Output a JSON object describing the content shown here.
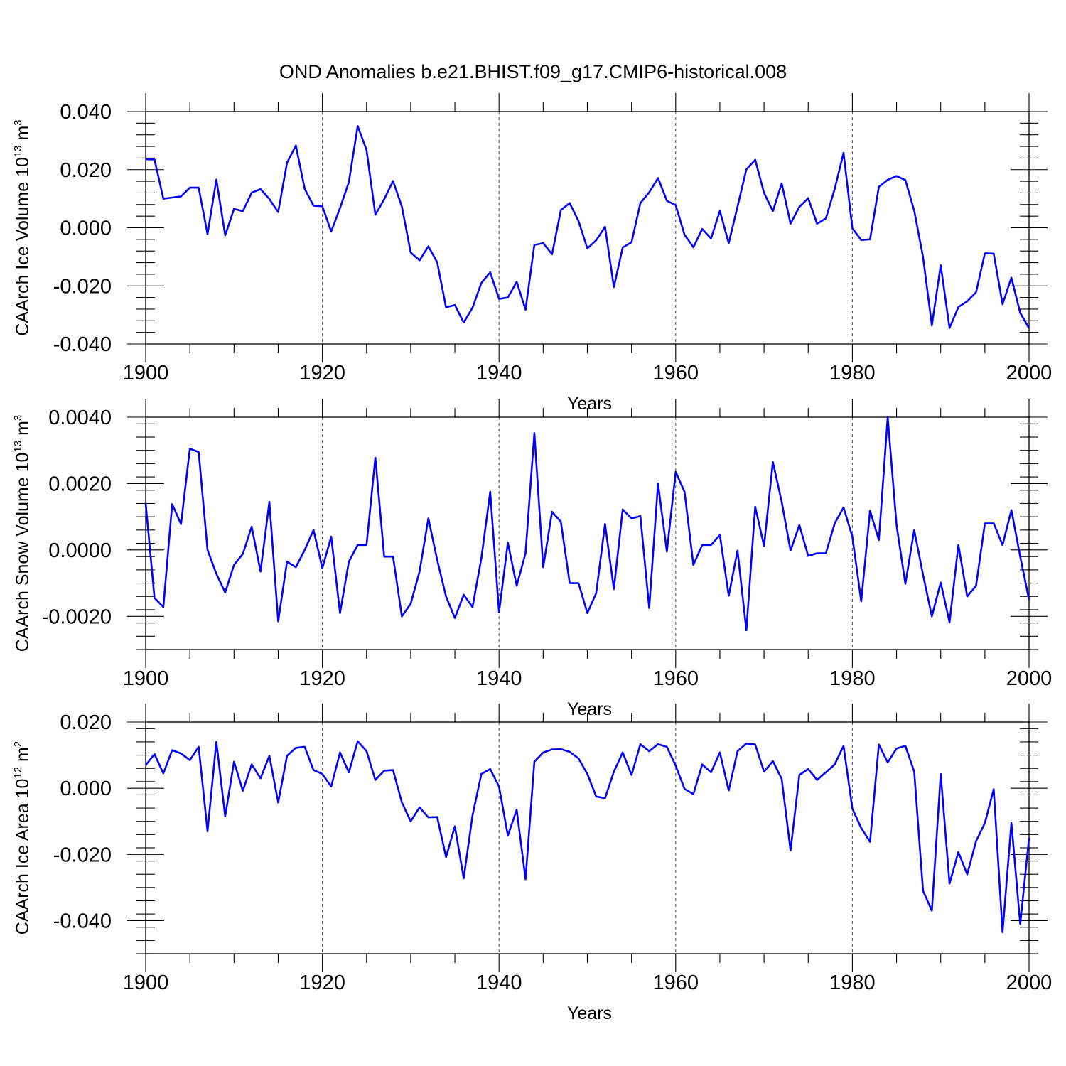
{
  "figure_title": "OND Anomalies b.e21.BHIST.f09_g17.CMIP6-historical.008",
  "colors": {
    "line": "#0000ff",
    "axes": "#000000",
    "background": "#ffffff"
  },
  "chart_data": [
    {
      "type": "line",
      "ylabel_main": "CAArch Ice Volume 10",
      "ylabel_exp": "13",
      "ylabel_unit": " m",
      "ylabel_unit_exp": "3",
      "xlabel": "Years",
      "xlim": [
        1900,
        2000
      ],
      "ylim": [
        -0.04,
        0.04
      ],
      "yticks": [
        -0.04,
        -0.02,
        0.0,
        0.02,
        0.04
      ],
      "ytick_labels": [
        "-0.040",
        "-0.020",
        "0.000",
        "0.020",
        "0.040"
      ],
      "xticks": [
        1900,
        1920,
        1940,
        1960,
        1980,
        2000
      ],
      "xtick_labels": [
        "1900",
        "1920",
        "1940",
        "1960",
        "1980",
        "2000"
      ],
      "reference_lines_x": [
        1920,
        1940,
        1960,
        1980
      ],
      "x": [
        1900,
        1901,
        1902,
        1903,
        1904,
        1905,
        1906,
        1907,
        1908,
        1909,
        1910,
        1911,
        1912,
        1913,
        1914,
        1915,
        1916,
        1917,
        1918,
        1919,
        1920,
        1921,
        1922,
        1923,
        1924,
        1925,
        1926,
        1927,
        1928,
        1929,
        1930,
        1931,
        1932,
        1933,
        1934,
        1935,
        1936,
        1937,
        1938,
        1939,
        1940,
        1941,
        1942,
        1943,
        1944,
        1945,
        1946,
        1947,
        1948,
        1949,
        1950,
        1951,
        1952,
        1953,
        1954,
        1955,
        1956,
        1957,
        1958,
        1959,
        1960,
        1961,
        1962,
        1963,
        1964,
        1965,
        1966,
        1967,
        1968,
        1969,
        1970,
        1971,
        1972,
        1973,
        1974,
        1975,
        1976,
        1977,
        1978,
        1979,
        1980,
        1981,
        1982,
        1983,
        1984,
        1985,
        1986,
        1987,
        1988,
        1989,
        1990,
        1991,
        1992,
        1993,
        1994,
        1995,
        1996,
        1997,
        1998,
        1999,
        2000
      ],
      "y": [
        0.0236,
        0.0235,
        0.01,
        0.0104,
        0.0108,
        0.0138,
        0.0138,
        -0.0022,
        0.0166,
        -0.0026,
        0.0065,
        0.0057,
        0.0121,
        0.0133,
        0.0099,
        0.0054,
        0.0224,
        0.0283,
        0.0134,
        0.0076,
        0.0074,
        -0.0013,
        0.0068,
        0.0157,
        0.035,
        0.0268,
        0.0045,
        0.0098,
        0.0161,
        0.0073,
        -0.0085,
        -0.0112,
        -0.0064,
        -0.0119,
        -0.0274,
        -0.0266,
        -0.0326,
        -0.0275,
        -0.019,
        -0.0153,
        -0.0245,
        -0.024,
        -0.0186,
        -0.0282,
        -0.0059,
        -0.0053,
        -0.0091,
        0.0061,
        0.0085,
        0.0023,
        -0.0071,
        -0.0043,
        0.0003,
        -0.0204,
        -0.0068,
        -0.005,
        0.0085,
        0.0122,
        0.0171,
        0.0093,
        0.0078,
        -0.0024,
        -0.0067,
        -0.0004,
        -0.0037,
        0.0058,
        -0.0053,
        0.0073,
        0.0201,
        0.0234,
        0.012,
        0.0057,
        0.0153,
        0.0014,
        0.0072,
        0.0102,
        0.0014,
        0.0032,
        0.0134,
        0.0258,
        -0.0002,
        -0.0042,
        -0.004,
        0.0141,
        0.0165,
        0.0178,
        0.0164,
        0.0059,
        -0.0101,
        -0.0336,
        -0.0129,
        -0.0345,
        -0.0273,
        -0.0253,
        -0.0222,
        -0.0088,
        -0.0089,
        -0.0263,
        -0.0172,
        -0.0293,
        -0.0346
      ]
    },
    {
      "type": "line",
      "ylabel_main": "CAArch Snow Volume 10",
      "ylabel_exp": "13",
      "ylabel_unit": " m",
      "ylabel_unit_exp": "3",
      "xlabel": "Years",
      "xlim": [
        1900,
        2000
      ],
      "ylim": [
        -0.003,
        0.004
      ],
      "yticks": [
        -0.002,
        0.0,
        0.002,
        0.004
      ],
      "ytick_labels": [
        "-0.0020",
        "0.0000",
        "0.0020",
        "0.0040"
      ],
      "xticks": [
        1900,
        1920,
        1940,
        1960,
        1980,
        2000
      ],
      "xtick_labels": [
        "1900",
        "1920",
        "1940",
        "1960",
        "1980",
        "2000"
      ],
      "reference_lines_x": [
        1920,
        1940,
        1960,
        1980
      ],
      "x": [
        1900,
        1901,
        1902,
        1903,
        1904,
        1905,
        1906,
        1907,
        1908,
        1909,
        1910,
        1911,
        1912,
        1913,
        1914,
        1915,
        1916,
        1917,
        1918,
        1919,
        1920,
        1921,
        1922,
        1923,
        1924,
        1925,
        1926,
        1927,
        1928,
        1929,
        1930,
        1931,
        1932,
        1933,
        1934,
        1935,
        1936,
        1937,
        1938,
        1939,
        1940,
        1941,
        1942,
        1943,
        1944,
        1945,
        1946,
        1947,
        1948,
        1949,
        1950,
        1951,
        1952,
        1953,
        1954,
        1955,
        1956,
        1957,
        1958,
        1959,
        1960,
        1961,
        1962,
        1963,
        1964,
        1965,
        1966,
        1967,
        1968,
        1969,
        1970,
        1971,
        1972,
        1973,
        1974,
        1975,
        1976,
        1977,
        1978,
        1979,
        1980,
        1981,
        1982,
        1983,
        1984,
        1985,
        1986,
        1987,
        1988,
        1989,
        1990,
        1991,
        1992,
        1993,
        1994,
        1995,
        1996,
        1997,
        1998,
        1999,
        2000
      ],
      "y": [
        0.0014,
        -0.00145,
        -0.00172,
        0.00138,
        0.00078,
        0.00305,
        0.00295,
        0.0,
        -0.00072,
        -0.00128,
        -0.00045,
        -0.00012,
        0.0007,
        -0.00065,
        0.00145,
        -0.00215,
        -0.00035,
        -0.00052,
        0.0,
        0.0006,
        -0.00055,
        0.0004,
        -0.0019,
        -0.00035,
        0.00015,
        0.00015,
        0.00278,
        -0.0002,
        -0.0002,
        -0.002,
        -0.00162,
        -0.00065,
        0.00095,
        -0.0003,
        -0.0014,
        -0.00205,
        -0.00135,
        -0.00172,
        -0.00025,
        0.00175,
        -0.00188,
        0.00022,
        -0.00108,
        -0.0001,
        0.00352,
        -0.00052,
        0.00115,
        0.00085,
        -0.001,
        -0.001,
        -0.0019,
        -0.0013,
        0.00078,
        -0.00118,
        0.00122,
        0.00095,
        0.00102,
        -0.00175,
        0.002,
        -5e-05,
        0.00235,
        0.00175,
        -0.00045,
        0.00015,
        0.00015,
        0.00045,
        -0.00138,
        -2e-05,
        -0.00242,
        0.0013,
        0.00012,
        0.00265,
        0.00145,
        -2e-05,
        0.00075,
        -0.00018,
        -0.0001,
        -0.0001,
        0.0008,
        0.00128,
        0.0004,
        -0.00155,
        0.00118,
        0.0003,
        0.004,
        0.00075,
        -0.00102,
        0.0006,
        -0.00075,
        -0.002,
        -0.00098,
        -0.00218,
        0.00015,
        -0.0014,
        -0.00108,
        0.0008,
        0.0008,
        0.00015,
        0.0012,
        -0.0002,
        -0.0015
      ]
    },
    {
      "type": "line",
      "ylabel_main": "CAArch Ice Area 10",
      "ylabel_exp": "12",
      "ylabel_unit": " m",
      "ylabel_unit_exp": "2",
      "xlabel": "Years",
      "xlim": [
        1900,
        2000
      ],
      "ylim": [
        -0.05,
        0.02
      ],
      "yticks": [
        -0.04,
        -0.02,
        0.0,
        0.02
      ],
      "ytick_labels": [
        "-0.040",
        "-0.020",
        "0.000",
        "0.020"
      ],
      "xticks": [
        1900,
        1920,
        1940,
        1960,
        1980,
        2000
      ],
      "xtick_labels": [
        "1900",
        "1920",
        "1940",
        "1960",
        "1980",
        "2000"
      ],
      "reference_lines_x": [
        1920,
        1940,
        1960,
        1980
      ],
      "x": [
        1900,
        1901,
        1902,
        1903,
        1904,
        1905,
        1906,
        1907,
        1908,
        1909,
        1910,
        1911,
        1912,
        1913,
        1914,
        1915,
        1916,
        1917,
        1918,
        1919,
        1920,
        1921,
        1922,
        1923,
        1924,
        1925,
        1926,
        1927,
        1928,
        1929,
        1930,
        1931,
        1932,
        1933,
        1934,
        1935,
        1936,
        1937,
        1938,
        1939,
        1940,
        1941,
        1942,
        1943,
        1944,
        1945,
        1946,
        1947,
        1948,
        1949,
        1950,
        1951,
        1952,
        1953,
        1954,
        1955,
        1956,
        1957,
        1958,
        1959,
        1960,
        1961,
        1962,
        1963,
        1964,
        1965,
        1966,
        1967,
        1968,
        1969,
        1970,
        1971,
        1972,
        1973,
        1974,
        1975,
        1976,
        1977,
        1978,
        1979,
        1980,
        1981,
        1982,
        1983,
        1984,
        1985,
        1986,
        1987,
        1988,
        1989,
        1990,
        1991,
        1992,
        1993,
        1994,
        1995,
        1996,
        1997,
        1998,
        1999,
        2000
      ],
      "y": [
        0.007,
        0.0103,
        0.0045,
        0.0115,
        0.0105,
        0.0085,
        0.0125,
        -0.013,
        0.014,
        -0.0085,
        0.008,
        -0.0008,
        0.0072,
        0.003,
        0.0098,
        -0.0043,
        0.0098,
        0.0122,
        0.0125,
        0.0055,
        0.0043,
        0.0005,
        0.0108,
        0.0048,
        0.0142,
        0.0112,
        0.0025,
        0.0053,
        0.0055,
        -0.0043,
        -0.01,
        -0.0058,
        -0.0088,
        -0.0087,
        -0.0208,
        -0.0115,
        -0.0272,
        -0.0082,
        0.0043,
        0.0058,
        0.0005,
        -0.0143,
        -0.0065,
        -0.0275,
        0.008,
        0.0108,
        0.0117,
        0.0118,
        0.011,
        0.009,
        0.0043,
        -0.0025,
        -0.003,
        0.005,
        0.0108,
        0.004,
        0.0133,
        0.0112,
        0.0133,
        0.0125,
        0.0068,
        -0.0002,
        -0.0018,
        0.0072,
        0.0048,
        0.0108,
        -0.0007,
        0.0112,
        0.0135,
        0.0132,
        0.005,
        0.0082,
        0.0028,
        -0.0188,
        0.004,
        0.0058,
        0.0025,
        0.0048,
        0.0072,
        0.0128,
        -0.0062,
        -0.012,
        -0.0162,
        0.0132,
        0.0078,
        0.012,
        0.0128,
        0.005,
        -0.031,
        -0.037,
        0.0043,
        -0.0288,
        -0.0193,
        -0.026,
        -0.016,
        -0.0105,
        -0.0003,
        -0.0435,
        -0.0105,
        -0.041,
        -0.015
      ]
    }
  ]
}
